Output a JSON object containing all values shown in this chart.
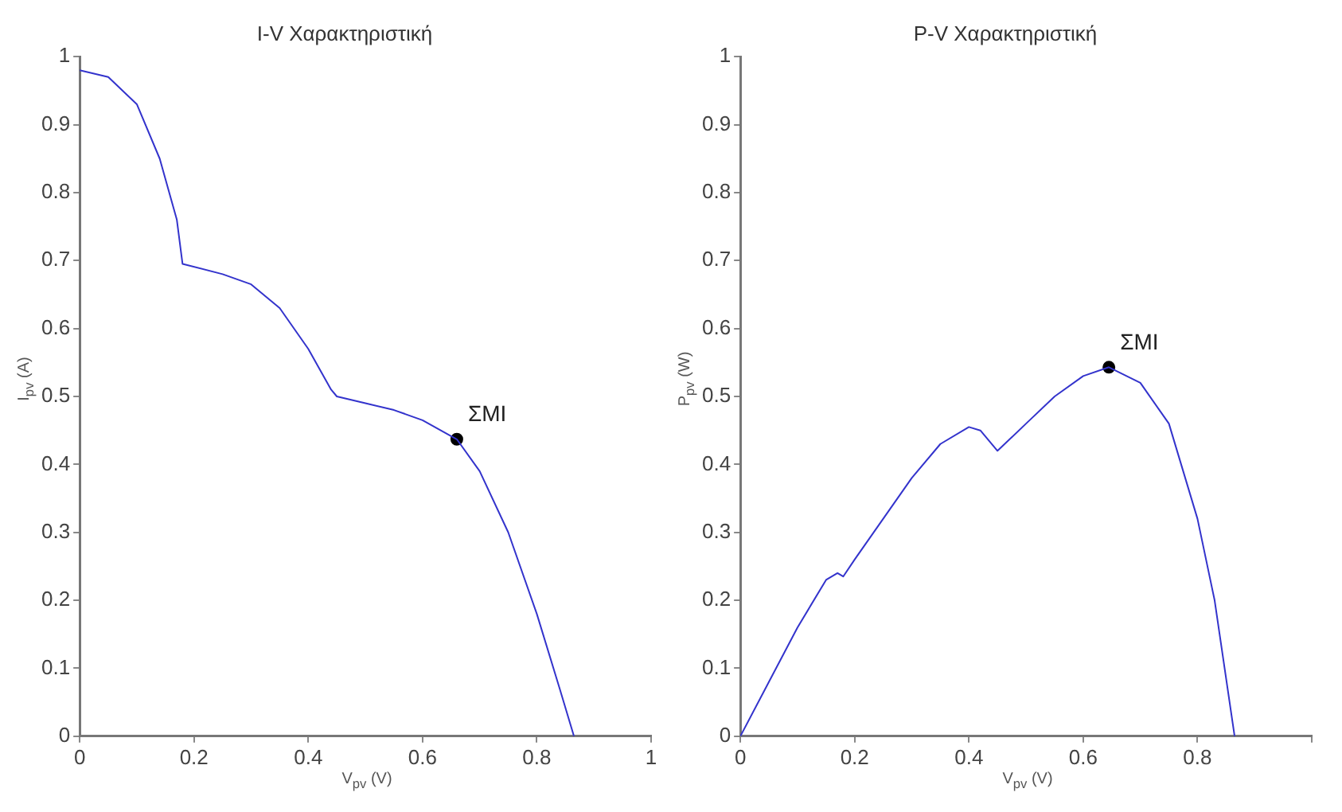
{
  "chart_data": [
    {
      "type": "line",
      "title": "I-V Χαρακτηριστική",
      "xlabel": "V$_{pv}$ (V)",
      "ylabel": "I$_{pv}$ (A)",
      "xlim": [
        0,
        1
      ],
      "ylim": [
        0,
        1
      ],
      "xticks": [
        0,
        0.2,
        0.4,
        0.6,
        0.8,
        1
      ],
      "yticks": [
        0,
        0.1,
        0.2,
        0.3,
        0.4,
        0.5,
        0.6,
        0.7,
        0.8,
        0.9,
        1
      ],
      "grid": false,
      "series": [
        {
          "color": "#3333cc",
          "x": [
            0,
            0.05,
            0.1,
            0.14,
            0.17,
            0.18,
            0.25,
            0.3,
            0.35,
            0.4,
            0.44,
            0.45,
            0.5,
            0.55,
            0.6,
            0.66,
            0.7,
            0.75,
            0.8,
            0.84,
            0.865
          ],
          "values": [
            0.98,
            0.97,
            0.93,
            0.85,
            0.76,
            0.695,
            0.68,
            0.665,
            0.63,
            0.57,
            0.51,
            0.5,
            0.49,
            0.48,
            0.465,
            0.437,
            0.39,
            0.3,
            0.18,
            0.07,
            0
          ]
        },
        {
          "type": "scatter",
          "marker": "circle",
          "color": "#000000",
          "x": [
            0.66
          ],
          "values": [
            0.437
          ]
        }
      ],
      "annotations": [
        {
          "text": "ΣΜΙ",
          "x": 0.66,
          "y": 0.437
        }
      ]
    },
    {
      "type": "line",
      "title": "P-V Χαρακτηριστική",
      "xlabel": "V$_{pv}$ (V)",
      "ylabel": "P$_{pv}$ (W)",
      "xlim": [
        0,
        1
      ],
      "ylim": [
        0,
        1
      ],
      "xticks": [
        0,
        0.2,
        0.4,
        0.6,
        0.8,
        {
          "value": 1,
          "label": null
        }
      ],
      "yticks": [
        0,
        0.1,
        0.2,
        0.3,
        0.4,
        0.5,
        0.6,
        0.7,
        0.8,
        0.9,
        1
      ],
      "grid": false,
      "series": [
        {
          "color": "#3333cc",
          "x": [
            0,
            0.05,
            0.1,
            0.15,
            0.17,
            0.18,
            0.2,
            0.25,
            0.3,
            0.35,
            0.4,
            0.42,
            0.45,
            0.5,
            0.55,
            0.6,
            0.645,
            0.7,
            0.75,
            0.8,
            0.83,
            0.865
          ],
          "values": [
            0,
            0.08,
            0.16,
            0.23,
            0.24,
            0.235,
            0.26,
            0.32,
            0.38,
            0.43,
            0.455,
            0.45,
            0.42,
            0.46,
            0.5,
            0.53,
            0.543,
            0.52,
            0.46,
            0.32,
            0.2,
            0
          ]
        },
        {
          "type": "scatter",
          "marker": "circle",
          "color": "#000000",
          "x": [
            0.645
          ],
          "values": [
            0.543
          ]
        }
      ],
      "annotations": [
        {
          "text": "ΣΜΙ",
          "x": 0.645,
          "y": 0.543
        }
      ]
    }
  ]
}
